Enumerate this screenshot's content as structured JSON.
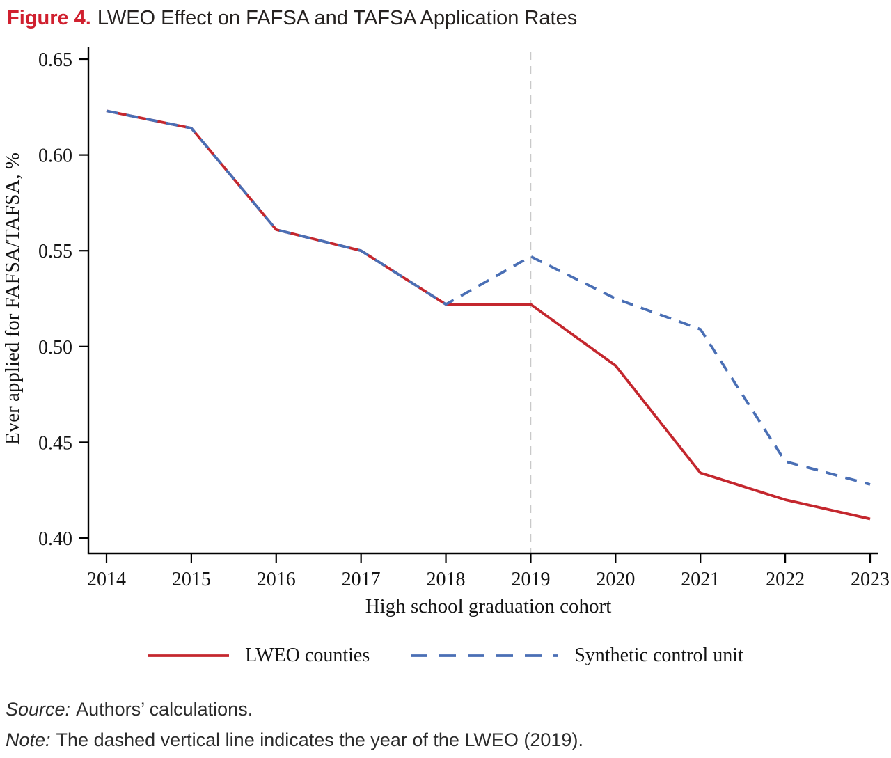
{
  "figure": {
    "label": "Figure 4.",
    "title": "LWEO Effect on FAFSA and TAFSA Application Rates"
  },
  "chart_data": {
    "type": "line",
    "title": "LWEO Effect on FAFSA and TAFSA Application Rates",
    "xlabel": "High school graduation cohort",
    "ylabel": "Ever applied for FAFSA/TAFSA, %",
    "categories": [
      2014,
      2015,
      2016,
      2017,
      2018,
      2019,
      2020,
      2021,
      2022,
      2023
    ],
    "y_ticks": [
      0.4,
      0.45,
      0.5,
      0.55,
      0.6,
      0.65
    ],
    "ylim": [
      0.4,
      0.65
    ],
    "grid": false,
    "legend_position": "bottom",
    "series": [
      {
        "name": "LWEO counties",
        "style": "solid",
        "color": "#c4272e",
        "values": [
          0.623,
          0.614,
          0.561,
          0.55,
          0.522,
          0.522,
          0.49,
          0.434,
          0.42,
          0.41
        ]
      },
      {
        "name": "Synthetic control unit",
        "style": "dashed",
        "color": "#4a6fb5",
        "values": [
          0.623,
          0.614,
          0.561,
          0.55,
          0.522,
          0.547,
          0.525,
          0.509,
          0.44,
          0.428
        ]
      }
    ],
    "reference_line": {
      "x": 2019,
      "style": "dashed",
      "color": "#c9c9c9"
    }
  },
  "notes": {
    "source_label": "Source:",
    "source_text": "Authors’ calculations.",
    "note_label": "Note:",
    "note_text": "The dashed vertical line indicates the year of the LWEO (2019)."
  }
}
